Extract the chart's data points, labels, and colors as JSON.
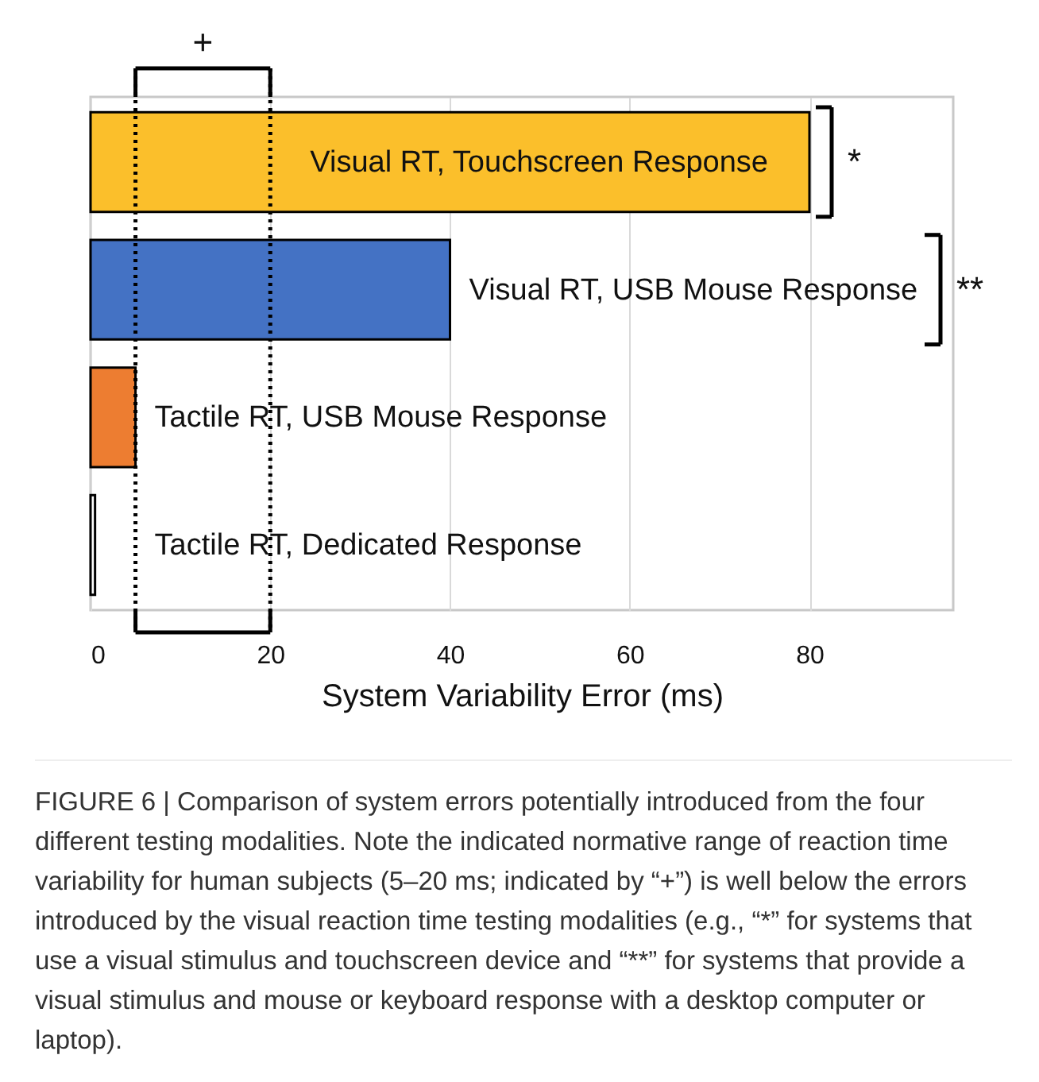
{
  "chart_data": {
    "type": "bar",
    "orientation": "horizontal",
    "xlabel": "System Variability Error (ms)",
    "categories": [
      "Visual RT, Touchscreen Response",
      "Visual RT, USB Mouse Response",
      "Tactile RT, USB Mouse Response",
      "Tactile RT, Dedicated Response"
    ],
    "values": [
      80,
      40,
      5,
      0.5
    ],
    "colors": [
      "#fbbf2b",
      "#4472c4",
      "#ed7d31",
      "#ffffff"
    ],
    "xlim": [
      0,
      96
    ],
    "xticks": [
      0,
      20,
      40,
      60,
      80
    ],
    "grid": "x",
    "ref_lines": [
      {
        "axis": "x",
        "value": 5,
        "line_style": "dotted"
      },
      {
        "axis": "x",
        "value": 20,
        "line_style": "dotted"
      }
    ],
    "annotations": [
      "+",
      "*",
      "**",
      "FIGURE 6 | Comparison of system errors potentially introduced from the four different testing modalities. Note the indicated normative range of reaction time variability for human subjects (5–20 ms; indicated by “+”) is well below the errors introduced by the visual reaction time testing modalities (e.g., “*” for systems that use a visual stimulus and touchscreen device and “**” for systems that provide a visual stimulus and mouse or keyboard response with a desktop computer or laptop)."
    ]
  }
}
